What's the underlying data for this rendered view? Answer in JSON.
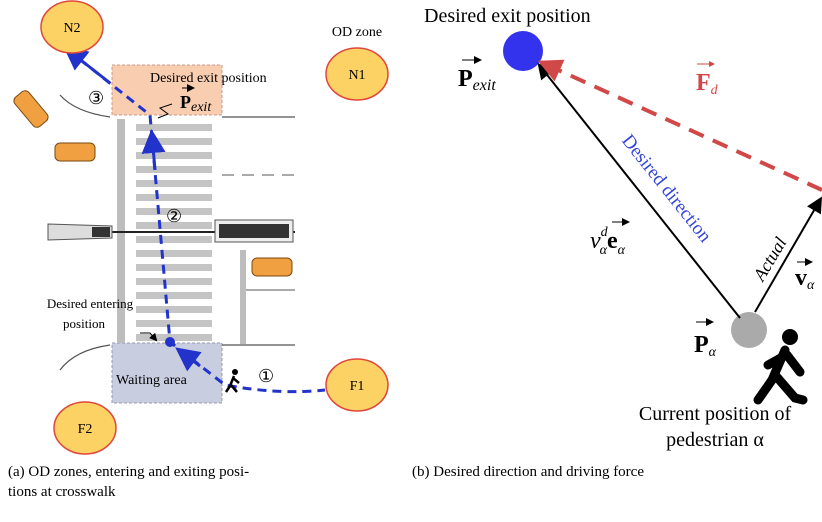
{
  "panel_a": {
    "zones": {
      "n2": "N2",
      "n1": "N1",
      "f1": "F1",
      "f2": "F2"
    },
    "od_zone_label": "OD zone",
    "exit_label": "Desired exit position",
    "p_exit": {
      "symbol": "P",
      "sub": "exit"
    },
    "steps": [
      "③",
      "②",
      "①"
    ],
    "entering_label": [
      "Desired entering",
      "position"
    ],
    "waiting_area": "Waiting area",
    "caption": [
      "(a) OD zones, entering and exiting posi-",
      "tions at crosswalk"
    ]
  },
  "panel_b": {
    "exit_label": "Desired exit position",
    "p_exit": {
      "symbol": "P",
      "sub": "exit"
    },
    "force": {
      "symbol": "F",
      "sub": "d"
    },
    "desired_direction": "Desired direction",
    "desired_velocity": {
      "speed": "v",
      "sup": "d",
      "sub": "α",
      "unit": "e",
      "unit_sub": "α"
    },
    "actual": "Actual",
    "velocity": {
      "symbol": "v",
      "sub": "α"
    },
    "position": {
      "symbol": "P",
      "sub": "α"
    },
    "current_position": [
      "Current position of",
      "pedestrian α"
    ],
    "caption": "(b) Desired direction and driving force"
  }
}
